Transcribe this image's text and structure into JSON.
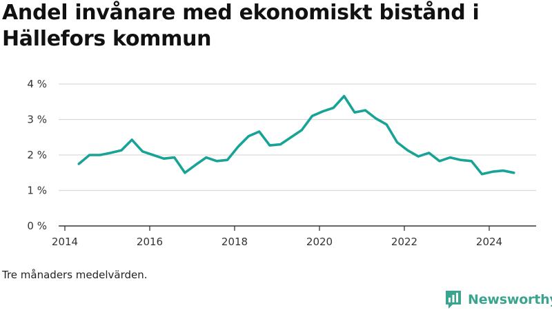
{
  "title": "Andel invånare med ekonomiskt bistånd i Hällefors kommun",
  "caption": "Tre månaders medelvärden.",
  "brand": "Newsworthy",
  "colors": {
    "line": "#18a396",
    "grid": "#d9d9d9",
    "axis": "#333333",
    "brand": "#3aa48f"
  },
  "chart_data": {
    "type": "line",
    "title": "Andel invånare med ekonomiskt bistånd i Hällefors kommun",
    "xlabel": "",
    "ylabel": "",
    "xlim": [
      2014,
      2025.25
    ],
    "ylim": [
      0,
      4
    ],
    "x_ticks": [
      2014,
      2016,
      2018,
      2020,
      2022,
      2024
    ],
    "y_ticks": [
      0,
      1,
      2,
      3,
      4
    ],
    "y_tick_labels": [
      "0 %",
      "1 %",
      "2 %",
      "3 %",
      "4 %"
    ],
    "grid": "horizontal",
    "series": [
      {
        "x": [
          2014.33,
          2014.58,
          2014.83,
          2015.08,
          2015.33,
          2015.58,
          2015.83,
          2016.08,
          2016.33,
          2016.58,
          2016.83,
          2017.08,
          2017.33,
          2017.58,
          2017.83,
          2018.08,
          2018.33,
          2018.58,
          2018.83,
          2019.08,
          2019.33,
          2019.58,
          2019.83,
          2020.08,
          2020.33,
          2020.58,
          2020.83,
          2021.08,
          2021.33,
          2021.58,
          2021.83,
          2022.08,
          2022.33,
          2022.58,
          2022.83,
          2023.08,
          2023.33,
          2023.58,
          2023.83,
          2024.08,
          2024.33,
          2024.58
        ],
        "values": [
          1.75,
          2.0,
          2.0,
          2.06,
          2.13,
          2.43,
          2.1,
          2.0,
          1.9,
          1.93,
          1.5,
          1.72,
          1.93,
          1.83,
          1.86,
          2.23,
          2.53,
          2.66,
          2.27,
          2.3,
          2.5,
          2.7,
          3.1,
          3.23,
          3.33,
          3.66,
          3.2,
          3.26,
          3.03,
          2.86,
          2.36,
          2.13,
          1.96,
          2.06,
          1.83,
          1.93,
          1.86,
          1.83,
          1.46,
          1.53,
          1.56,
          1.5
        ]
      }
    ]
  }
}
